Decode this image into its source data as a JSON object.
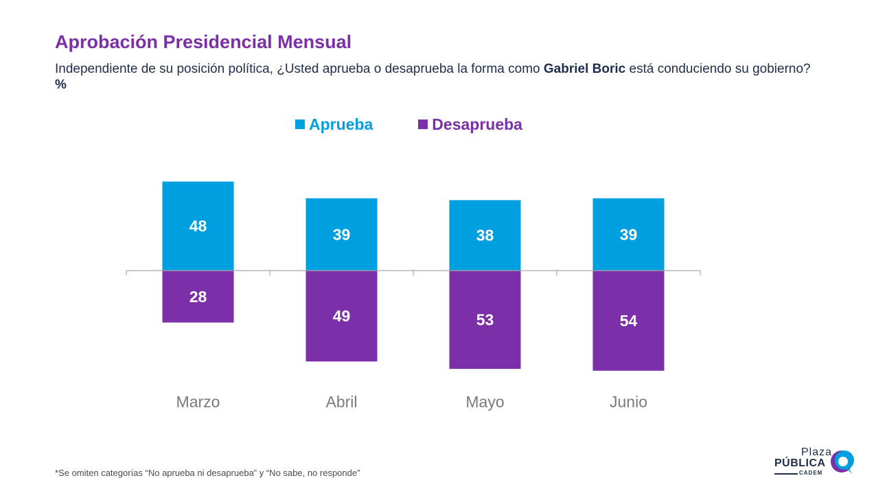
{
  "header": {
    "title": "Aprobación Presidencial Mensual",
    "subtitle_pre": "Independiente de su posición política, ¿Usted aprueba o desaprueba la forma como ",
    "subtitle_bold": "Gabriel Boric",
    "subtitle_post": " está conduciendo su gobierno? ",
    "subtitle_unit": "%"
  },
  "legend": [
    {
      "label": "Aprueba",
      "color": "#009FDF"
    },
    {
      "label": "Desaprueba",
      "color": "#7B2FA8"
    }
  ],
  "chart_data": {
    "type": "bar",
    "categories": [
      "Marzo",
      "Abril",
      "Mayo",
      "Junio"
    ],
    "series": [
      {
        "name": "Aprueba",
        "values": [
          48,
          39,
          38,
          39
        ],
        "color": "#009FDF"
      },
      {
        "name": "Desaprueba",
        "values": [
          28,
          49,
          53,
          54
        ],
        "color": "#7B2FA8"
      }
    ],
    "layout": "diverging (Aprueba above axis, Desaprueba below)",
    "legend_position": "top",
    "grid": false
  },
  "footnote": "*Se omiten categorías “No aprueba ni desaprueba” y “No sabe, no responde”",
  "logo": {
    "line1": "Plaza",
    "line2": "PÚBLICA",
    "line3": "CADEM"
  }
}
